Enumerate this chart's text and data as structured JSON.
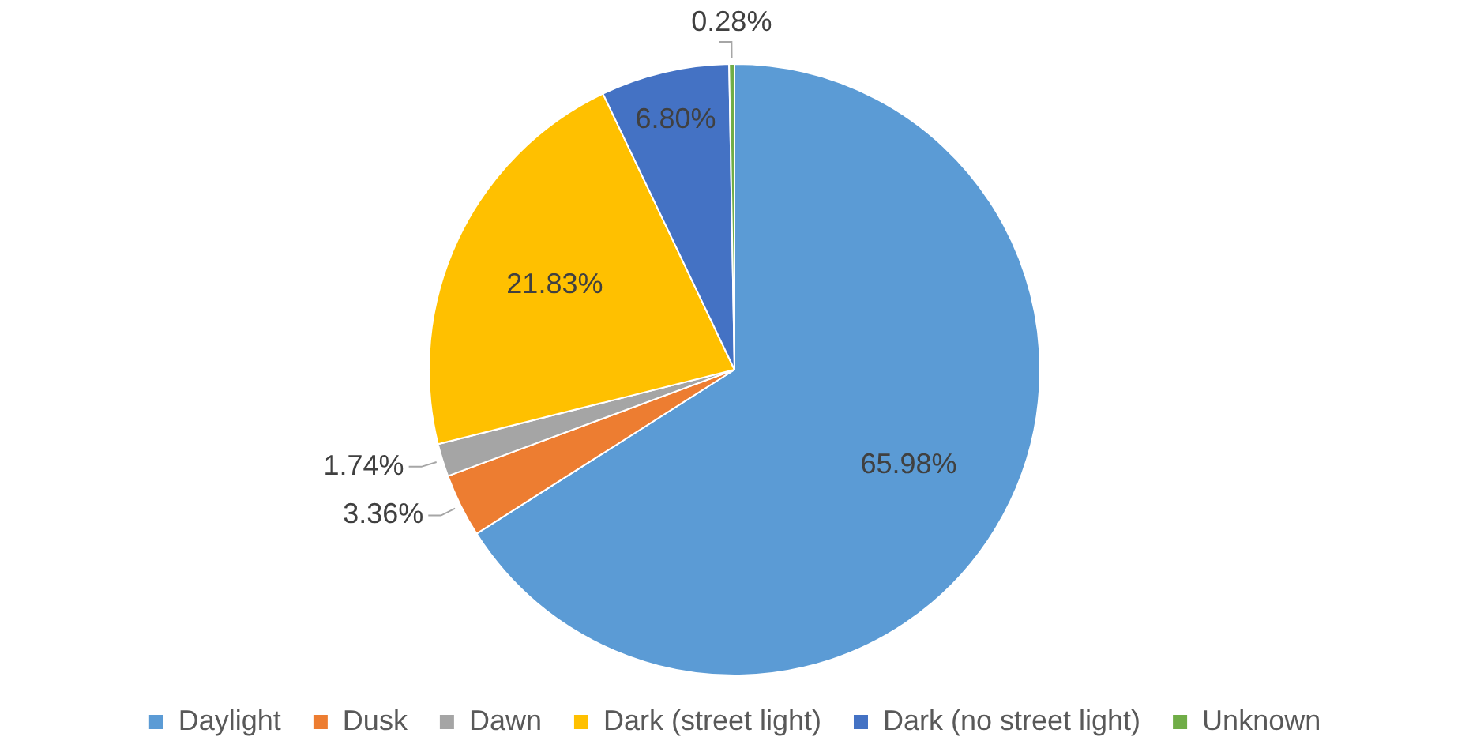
{
  "chart_data": {
    "type": "pie",
    "categories": [
      "Daylight",
      "Dusk",
      "Dawn",
      "Dark (street light)",
      "Dark (no street light)",
      "Unknown"
    ],
    "values": [
      65.98,
      3.36,
      1.74,
      21.83,
      6.8,
      0.28
    ],
    "colors": [
      "#5b9bd5",
      "#ed7d31",
      "#a5a5a5",
      "#ffc000",
      "#4472c4",
      "#70ad47"
    ],
    "value_labels": [
      "65.98%",
      "3.36%",
      "1.74%",
      "21.83%",
      "6.80%",
      "0.28%"
    ],
    "legend": "bottom"
  }
}
